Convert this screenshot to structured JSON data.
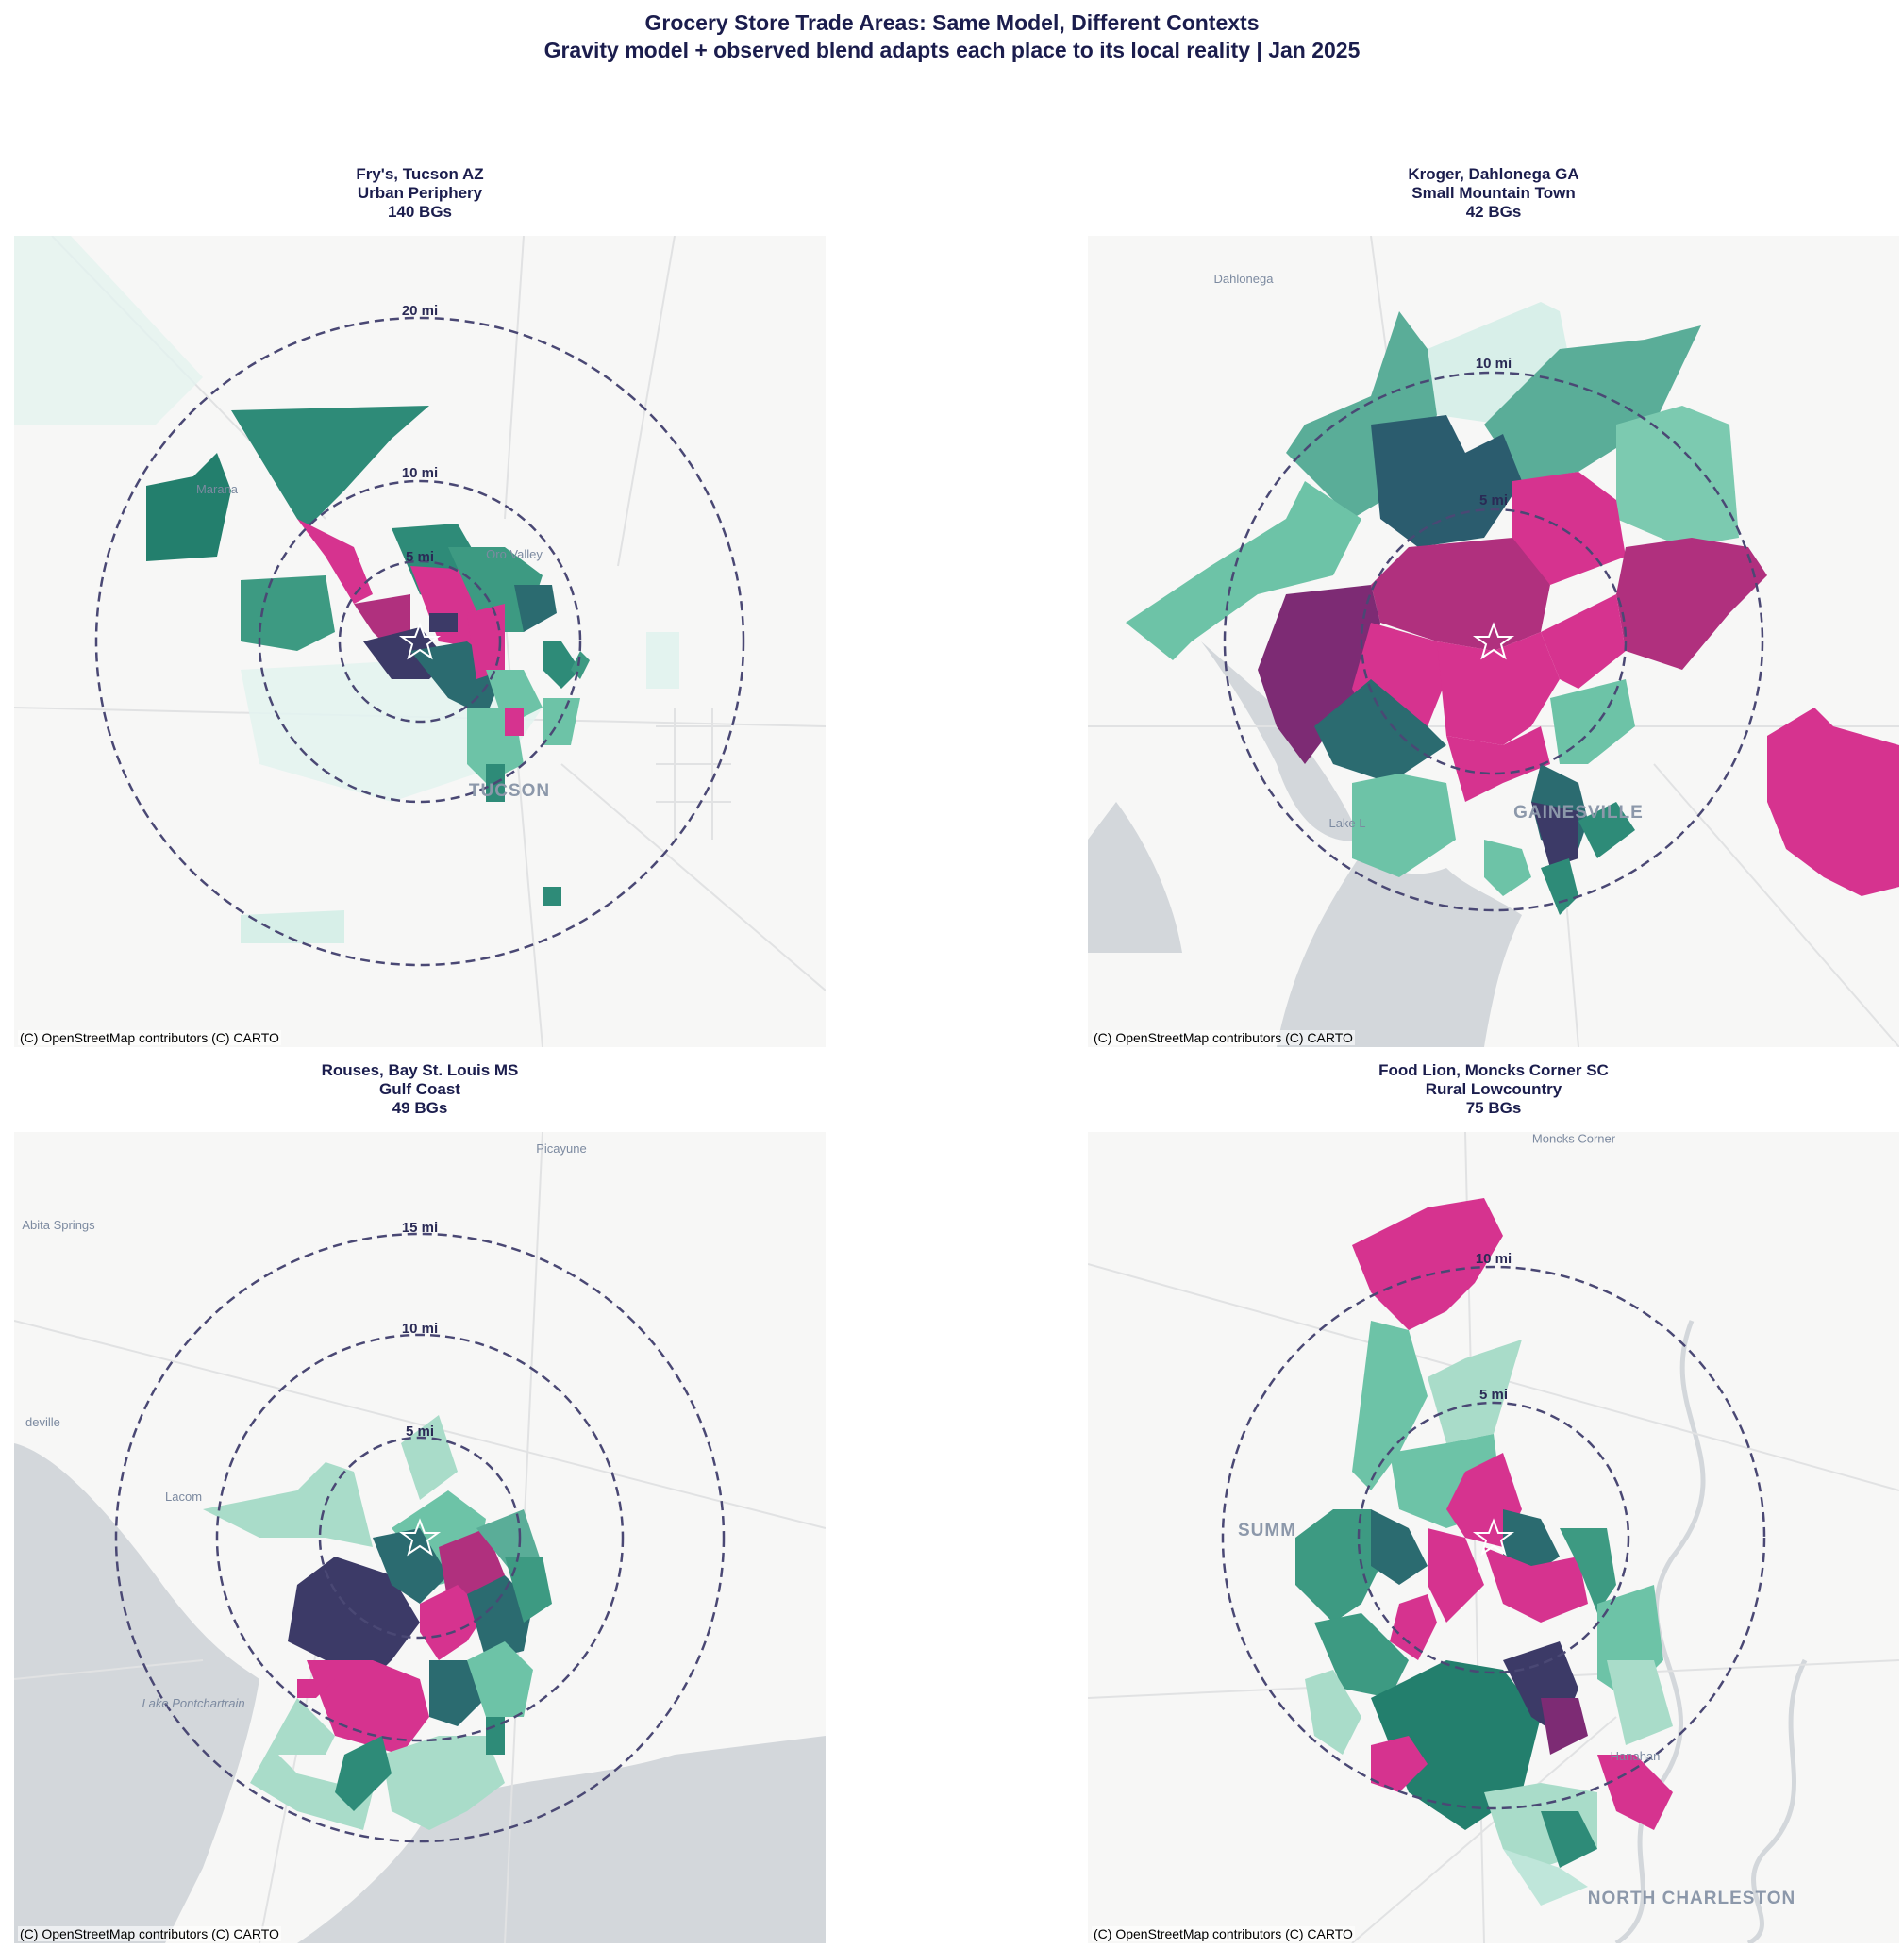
{
  "title": "Grocery Store Trade Areas: Same Model, Different Contexts",
  "subtitle": "Gravity model + observed blend adapts each place to its local reality | Jan 2025",
  "attribution": "(C) OpenStreetMap contributors (C) CARTO",
  "colors": {
    "highest_share": "#d6338f",
    "high_share": "#b0307e",
    "core_dark": "#3c3a67",
    "mid_dark": "#2b6b70",
    "mid": "#2e8b78",
    "low": "#6dc3a7",
    "lowest": "#bfe6da",
    "ring": "#4a4874",
    "water": "#d3d7db",
    "land": "#f7f7f6"
  },
  "panels": [
    {
      "store": "Fry's, Tucson AZ",
      "context": "Urban Periphery",
      "block_groups": "140 BGs",
      "rings": [
        "5 mi",
        "10 mi",
        "20 mi"
      ],
      "places": [
        "Marana",
        "Oro Valley",
        "TUCSON"
      ]
    },
    {
      "store": "Kroger, Dahlonega GA",
      "context": "Small Mountain Town",
      "block_groups": "42 BGs",
      "rings": [
        "5 mi",
        "10 mi"
      ],
      "places": [
        "Dahlonega",
        "GAINESVILLE",
        "Lake L"
      ]
    },
    {
      "store": "Rouses, Bay St. Louis MS",
      "context": "Gulf Coast",
      "block_groups": "49 BGs",
      "rings": [
        "5 mi",
        "10 mi",
        "15 mi"
      ],
      "places": [
        "Picayune",
        "Abita Springs",
        "deville",
        "Lacom",
        "Lake Pontchartrain"
      ]
    },
    {
      "store": "Food Lion, Moncks Corner SC",
      "context": "Rural Lowcountry",
      "block_groups": "75 BGs",
      "rings": [
        "5 mi",
        "10 mi"
      ],
      "places": [
        "Moncks Corner",
        "SUMM",
        "Hanahan",
        "NORTH CHARLESTON"
      ]
    }
  ]
}
